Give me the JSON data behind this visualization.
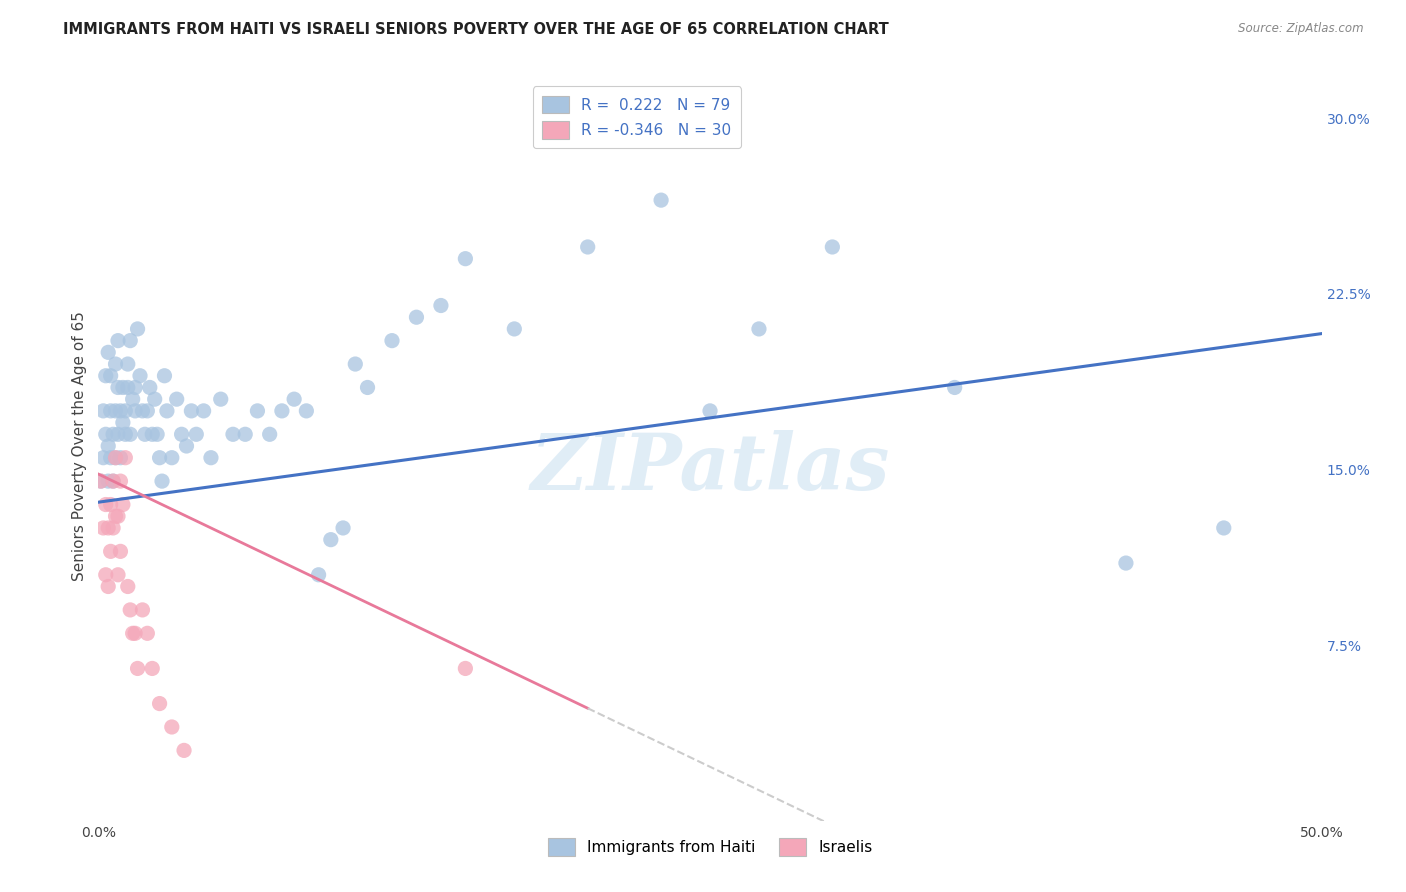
{
  "title": "IMMIGRANTS FROM HAITI VS ISRAELI SENIORS POVERTY OVER THE AGE OF 65 CORRELATION CHART",
  "source": "Source: ZipAtlas.com",
  "ylabel": "Seniors Poverty Over the Age of 65",
  "xlim": [
    0.0,
    0.5
  ],
  "ylim": [
    0.0,
    0.32
  ],
  "xticks": [
    0.0,
    0.1,
    0.2,
    0.3,
    0.4,
    0.5
  ],
  "xticklabels": [
    "0.0%",
    "",
    "",
    "",
    "",
    "50.0%"
  ],
  "yticks_right": [
    0.0,
    0.075,
    0.15,
    0.225,
    0.3
  ],
  "yticklabels_right": [
    "",
    "7.5%",
    "15.0%",
    "22.5%",
    "30.0%"
  ],
  "blue_R": "0.222",
  "blue_N": "79",
  "pink_R": "-0.346",
  "pink_N": "30",
  "blue_color": "#a8c4e0",
  "pink_color": "#f4a7b9",
  "blue_line_color": "#4472c4",
  "pink_line_color": "#e8799a",
  "legend_blue_label": "Immigrants from Haiti",
  "legend_pink_label": "Israelis",
  "watermark": "ZIPatlas",
  "blue_line_x0": 0.0,
  "blue_line_y0": 0.136,
  "blue_line_x1": 0.5,
  "blue_line_y1": 0.208,
  "pink_line_x0": 0.0,
  "pink_line_y0": 0.148,
  "pink_line_x1": 0.2,
  "pink_line_y1": 0.048,
  "blue_scatter_x": [
    0.001,
    0.002,
    0.002,
    0.003,
    0.003,
    0.004,
    0.004,
    0.004,
    0.005,
    0.005,
    0.005,
    0.006,
    0.006,
    0.007,
    0.007,
    0.007,
    0.008,
    0.008,
    0.008,
    0.009,
    0.009,
    0.01,
    0.01,
    0.011,
    0.011,
    0.012,
    0.012,
    0.013,
    0.013,
    0.014,
    0.015,
    0.015,
    0.016,
    0.017,
    0.018,
    0.019,
    0.02,
    0.021,
    0.022,
    0.023,
    0.024,
    0.025,
    0.026,
    0.027,
    0.028,
    0.03,
    0.032,
    0.034,
    0.036,
    0.038,
    0.04,
    0.043,
    0.046,
    0.05,
    0.055,
    0.06,
    0.065,
    0.07,
    0.075,
    0.08,
    0.09,
    0.1,
    0.11,
    0.12,
    0.13,
    0.14,
    0.15,
    0.17,
    0.2,
    0.23,
    0.25,
    0.27,
    0.3,
    0.35,
    0.42,
    0.46,
    0.085,
    0.095,
    0.105
  ],
  "blue_scatter_y": [
    0.145,
    0.175,
    0.155,
    0.19,
    0.165,
    0.145,
    0.16,
    0.2,
    0.155,
    0.175,
    0.19,
    0.145,
    0.165,
    0.175,
    0.195,
    0.155,
    0.185,
    0.165,
    0.205,
    0.175,
    0.155,
    0.17,
    0.185,
    0.175,
    0.165,
    0.185,
    0.195,
    0.165,
    0.205,
    0.18,
    0.175,
    0.185,
    0.21,
    0.19,
    0.175,
    0.165,
    0.175,
    0.185,
    0.165,
    0.18,
    0.165,
    0.155,
    0.145,
    0.19,
    0.175,
    0.155,
    0.18,
    0.165,
    0.16,
    0.175,
    0.165,
    0.175,
    0.155,
    0.18,
    0.165,
    0.165,
    0.175,
    0.165,
    0.175,
    0.18,
    0.105,
    0.125,
    0.185,
    0.205,
    0.215,
    0.22,
    0.24,
    0.21,
    0.245,
    0.265,
    0.175,
    0.21,
    0.245,
    0.185,
    0.11,
    0.125,
    0.175,
    0.12,
    0.195
  ],
  "pink_scatter_x": [
    0.001,
    0.002,
    0.003,
    0.003,
    0.004,
    0.004,
    0.005,
    0.005,
    0.006,
    0.006,
    0.007,
    0.007,
    0.008,
    0.008,
    0.009,
    0.009,
    0.01,
    0.011,
    0.012,
    0.013,
    0.014,
    0.015,
    0.016,
    0.018,
    0.02,
    0.022,
    0.025,
    0.03,
    0.035,
    0.15
  ],
  "pink_scatter_y": [
    0.145,
    0.125,
    0.135,
    0.105,
    0.1,
    0.125,
    0.115,
    0.135,
    0.125,
    0.145,
    0.13,
    0.155,
    0.13,
    0.105,
    0.145,
    0.115,
    0.135,
    0.155,
    0.1,
    0.09,
    0.08,
    0.08,
    0.065,
    0.09,
    0.08,
    0.065,
    0.05,
    0.04,
    0.03,
    0.065
  ]
}
